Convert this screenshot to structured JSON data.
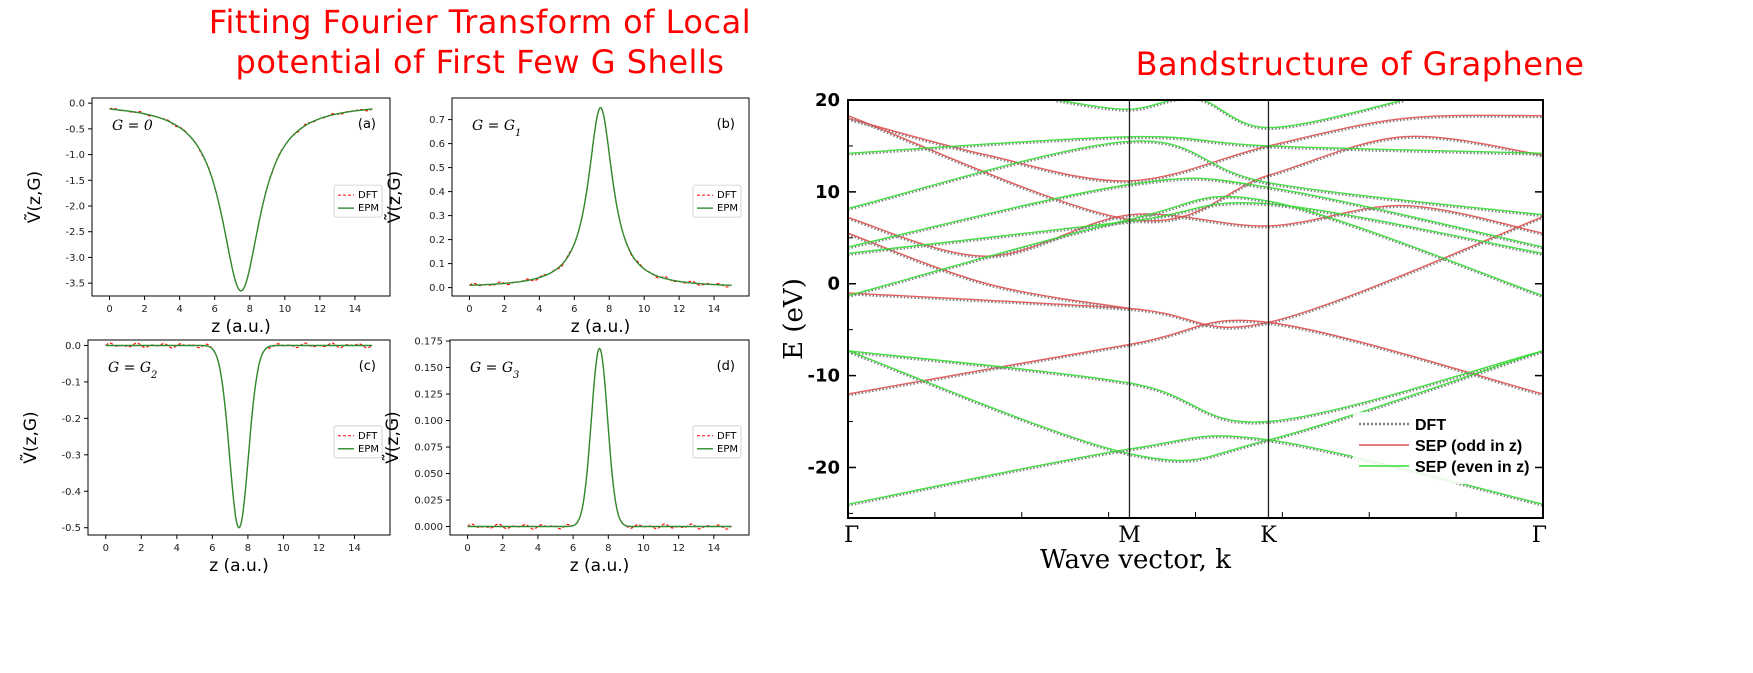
{
  "headings": {
    "left_line1": "Fitting Fourier Transform of Local",
    "left_line2": "potential of First Few G Shells",
    "right": "Bandstructure of Graphene"
  },
  "colors": {
    "heading": "#ff0000",
    "dft_small": "#ff0000",
    "epm": "#2e8b2e",
    "dft_band": "#808080",
    "sep_odd": "#e05050",
    "sep_even": "#33dd33"
  },
  "chart_data": [
    {
      "type": "line",
      "panel": "(a)",
      "annotation": "G = 0",
      "xlabel": "z (a.u.)",
      "ylabel": "Ṽ(z,G)",
      "xlim": [
        -1,
        16
      ],
      "ylim": [
        -3.75,
        0.1
      ],
      "x_ticks": [
        "0",
        "2",
        "4",
        "6",
        "8",
        "10",
        "12",
        "14"
      ],
      "y_ticks": [
        "0.0",
        "-0.5",
        "-1.0",
        "-1.5",
        "-2.0",
        "-2.5",
        "-3.0",
        "-3.5"
      ],
      "peak": {
        "x": 7.5,
        "y": -3.65,
        "shape": "lorentzian",
        "half_width": 1.35
      },
      "x_range": [
        0,
        15
      ],
      "legend": [
        "DFT",
        "EPM"
      ],
      "dft_ripple": 0.025,
      "series": [
        {
          "name": "DFT",
          "style": "dashed"
        },
        {
          "name": "EPM",
          "style": "solid"
        }
      ]
    },
    {
      "type": "line",
      "panel": "(b)",
      "annotation": "G = G1",
      "xlabel": "z (a.u.)",
      "ylabel": "Ṽ(z,G)",
      "xlim": [
        -1,
        16
      ],
      "ylim": [
        -0.035,
        0.79
      ],
      "x_ticks": [
        "0",
        "2",
        "4",
        "6",
        "8",
        "10",
        "12",
        "14"
      ],
      "y_ticks": [
        "0.0",
        "0.1",
        "0.2",
        "0.3",
        "0.4",
        "0.5",
        "0.6",
        "0.7"
      ],
      "peak": {
        "x": 7.5,
        "y": 0.75,
        "shape": "lorentzian",
        "half_width": 0.85
      },
      "x_range": [
        0,
        15
      ],
      "legend": [
        "DFT",
        "EPM"
      ],
      "dft_ripple": 0.008,
      "series": [
        {
          "name": "DFT",
          "style": "dashed"
        },
        {
          "name": "EPM",
          "style": "solid"
        }
      ]
    },
    {
      "type": "line",
      "panel": "(c)",
      "annotation": "G = G2",
      "xlabel": "z (a.u.)",
      "ylabel": "Ṽ(z,G)",
      "xlim": [
        -1,
        16
      ],
      "ylim": [
        -0.52,
        0.015
      ],
      "x_ticks": [
        "0",
        "2",
        "4",
        "6",
        "8",
        "10",
        "12",
        "14"
      ],
      "y_ticks": [
        "0.0",
        "-0.1",
        "-0.2",
        "-0.3",
        "-0.4",
        "-0.5"
      ],
      "peak": {
        "x": 7.5,
        "y": -0.5,
        "shape": "gaussian",
        "half_width": 0.75
      },
      "x_range": [
        0,
        15
      ],
      "legend": [
        "DFT",
        "EPM"
      ],
      "dft_ripple": 0.007,
      "series": [
        {
          "name": "DFT",
          "style": "dashed"
        },
        {
          "name": "EPM",
          "style": "solid"
        }
      ]
    },
    {
      "type": "line",
      "panel": "(d)",
      "annotation": "G = G3",
      "xlabel": "z (a.u.)",
      "ylabel": "Ṽ(z,G)",
      "xlim": [
        -1,
        16
      ],
      "ylim": [
        -0.008,
        0.176
      ],
      "x_ticks": [
        "0",
        "2",
        "4",
        "6",
        "8",
        "10",
        "12",
        "14"
      ],
      "y_ticks": [
        "0.000",
        "0.025",
        "0.050",
        "0.075",
        "0.100",
        "0.125",
        "0.150",
        "0.175"
      ],
      "peak": {
        "x": 7.5,
        "y": 0.168,
        "shape": "gaussian",
        "half_width": 0.65
      },
      "x_range": [
        0,
        15
      ],
      "legend": [
        "DFT",
        "EPM"
      ],
      "dft_ripple": 0.0025,
      "series": [
        {
          "name": "DFT",
          "style": "dashed"
        },
        {
          "name": "EPM",
          "style": "solid"
        }
      ]
    },
    {
      "type": "line",
      "panel": "bandstructure",
      "xlabel": "Wave vector, k",
      "ylabel": "E (eV)",
      "ylim": [
        -25.5,
        20
      ],
      "y_ticks": [
        20,
        10,
        0,
        -10,
        -20
      ],
      "k_labels": [
        "Γ",
        "M",
        "K",
        "Γ"
      ],
      "k_positions": [
        0,
        0.405,
        0.605,
        1.0
      ],
      "legend": [
        "DFT",
        "SEP (odd in z)",
        "SEP (even in  z)"
      ],
      "series": [
        {
          "name": "SEP (odd in z)",
          "parity": "odd",
          "points": [
            [
              0,
              -1
            ],
            [
              0.405,
              -2.7
            ],
            [
              0.605,
              -4.2
            ],
            [
              1.0,
              7.3
            ]
          ]
        },
        {
          "name": "SEP (odd in z)",
          "parity": "odd",
          "points": [
            [
              0,
              -12
            ],
            [
              0.405,
              -6.6
            ],
            [
              0.605,
              -4.2
            ],
            [
              1.0,
              -12
            ]
          ]
        },
        {
          "name": "SEP (odd in z)",
          "parity": "odd",
          "points": [
            [
              0,
              5.5
            ],
            [
              0.2,
              0
            ],
            [
              0.405,
              -2.7
            ]
          ]
        },
        {
          "name": "SEP (odd in z)",
          "parity": "odd",
          "points": [
            [
              0,
              7.2
            ],
            [
              0.2,
              3.0
            ],
            [
              0.405,
              7.5
            ],
            [
              0.605,
              6.3
            ],
            [
              0.8,
              8.5
            ],
            [
              1.0,
              5.5
            ]
          ]
        },
        {
          "name": "SEP (odd in z)",
          "parity": "odd",
          "points": [
            [
              0,
              18
            ],
            [
              0.2,
              14
            ],
            [
              0.405,
              11.2
            ],
            [
              0.605,
              15.0
            ],
            [
              0.8,
              18
            ],
            [
              1.0,
              18.3
            ]
          ]
        },
        {
          "name": "SEP (odd in z)",
          "parity": "odd",
          "points": [
            [
              0,
              18.3
            ],
            [
              0.405,
              7.0
            ],
            [
              0.605,
              11.8
            ],
            [
              0.8,
              16
            ],
            [
              1.0,
              14
            ]
          ]
        },
        {
          "name": "SEP (even in  z)",
          "parity": "even",
          "points": [
            [
              0,
              -7.3
            ],
            [
              0.405,
              -10.8
            ],
            [
              0.605,
              -15.0
            ],
            [
              1.0,
              -7.3
            ]
          ]
        },
        {
          "name": "SEP (even in  z)",
          "parity": "even",
          "points": [
            [
              0,
              -7.3
            ],
            [
              0.405,
              -18.5
            ],
            [
              0.605,
              -17.0
            ],
            [
              1.0,
              -7.3
            ]
          ]
        },
        {
          "name": "SEP (even in  z)",
          "parity": "even",
          "points": [
            [
              0,
              -24
            ],
            [
              0.405,
              -18.0
            ],
            [
              0.605,
              -17.0
            ],
            [
              1.0,
              -24
            ]
          ]
        },
        {
          "name": "SEP (even in  z)",
          "parity": "even",
          "points": [
            [
              0,
              3.3
            ],
            [
              0.405,
              6.8
            ],
            [
              0.605,
              8.7
            ],
            [
              1.0,
              3.3
            ]
          ]
        },
        {
          "name": "SEP (even in  z)",
          "parity": "even",
          "points": [
            [
              0,
              -1.3
            ],
            [
              0.405,
              7.0
            ],
            [
              0.605,
              9.0
            ],
            [
              1.0,
              -1.3
            ]
          ]
        },
        {
          "name": "SEP (even in  z)",
          "parity": "even",
          "points": [
            [
              0,
              4.0
            ],
            [
              0.405,
              10.8
            ],
            [
              0.605,
              10.5
            ],
            [
              1.0,
              4.0
            ]
          ]
        },
        {
          "name": "SEP (even in  z)",
          "parity": "even",
          "points": [
            [
              0,
              8.2
            ],
            [
              0.405,
              15.5
            ],
            [
              0.605,
              11.0
            ],
            [
              1.0,
              7.5
            ]
          ]
        },
        {
          "name": "SEP (even in  z)",
          "parity": "even",
          "points": [
            [
              0,
              14.2
            ],
            [
              0.405,
              16.0
            ],
            [
              0.605,
              15.0
            ],
            [
              1.0,
              14.2
            ]
          ]
        },
        {
          "name": "SEP (even in  z)",
          "parity": "even",
          "points": [
            [
              0.3,
              20
            ],
            [
              0.405,
              19.0
            ],
            [
              0.5,
              20.2
            ],
            [
              0.605,
              17.0
            ],
            [
              0.8,
              20.0
            ]
          ]
        }
      ]
    }
  ]
}
